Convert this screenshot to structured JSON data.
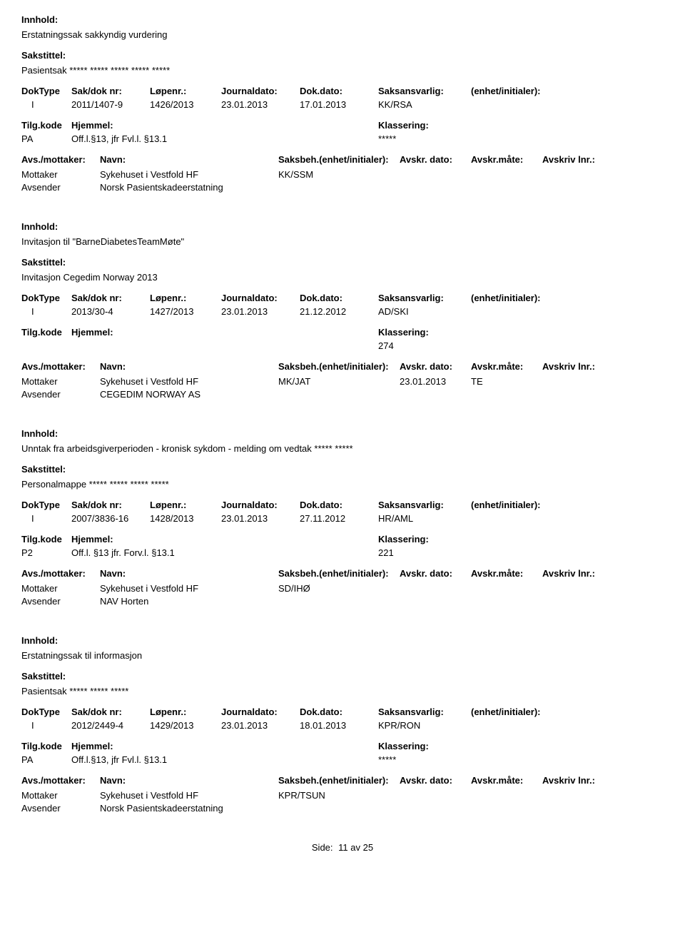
{
  "labels": {
    "innhold": "Innhold:",
    "sakstittel": "Sakstittel:",
    "doktype": "DokType",
    "sakdok": "Sak/dok nr:",
    "lopenr": "Løpenr.:",
    "journaldato": "Journaldato:",
    "dokdato": "Dok.dato:",
    "saksansvarlig": "Saksansvarlig:",
    "enhet_initialer": "(enhet/initialer):",
    "tilgkode": "Tilg.kode",
    "hjemmel": "Hjemmel:",
    "klassering": "Klassering:",
    "avs_mottaker": "Avs./mottaker:",
    "navn": "Navn:",
    "saksbeh": "Saksbeh.(enhet/initialer):",
    "avskr_dato": "Avskr. dato:",
    "avskr_mate": "Avskr.måte:",
    "avskriv_lnr": "Avskriv lnr.:",
    "mottaker": "Mottaker",
    "avsender": "Avsender",
    "side": "Side:",
    "av": "av"
  },
  "footer": {
    "page": "11",
    "total": "25"
  },
  "records": [
    {
      "innhold": "Erstatningssak sakkyndig vurdering",
      "sakstittel": "Pasientsak ***** ***** ***** ***** *****",
      "doktype": "I",
      "sakdok": "2011/1407-9",
      "lopenr": "1426/2013",
      "journaldato": "23.01.2013",
      "dokdato": "17.01.2013",
      "saksansvarlig": "KK/RSA",
      "tilgkode": "PA",
      "hjemmel": "Off.l.§13, jfr Fvl.l. §13.1",
      "klassering": "*****",
      "parties": [
        {
          "role": "Mottaker",
          "navn": "Sykehuset i Vestfold HF",
          "saksbeh": "KK/SSM",
          "avskr_dato": "",
          "avskr_mate": "",
          "avskr_lnr": ""
        },
        {
          "role": "Avsender",
          "navn": "Norsk Pasientskadeerstatning",
          "saksbeh": "",
          "avskr_dato": "",
          "avskr_mate": "",
          "avskr_lnr": ""
        }
      ]
    },
    {
      "innhold": "Invitasjon til \"BarneDiabetesTeamMøte\"",
      "sakstittel": "Invitasjon Cegedim Norway 2013",
      "doktype": "I",
      "sakdok": "2013/30-4",
      "lopenr": "1427/2013",
      "journaldato": "23.01.2013",
      "dokdato": "21.12.2012",
      "saksansvarlig": "AD/SKI",
      "tilgkode": "",
      "hjemmel": "",
      "klassering": "274",
      "parties": [
        {
          "role": "Mottaker",
          "navn": "Sykehuset i Vestfold HF",
          "saksbeh": "MK/JAT",
          "avskr_dato": "23.01.2013",
          "avskr_mate": "TE",
          "avskr_lnr": ""
        },
        {
          "role": "Avsender",
          "navn": "CEGEDIM NORWAY AS",
          "saksbeh": "",
          "avskr_dato": "",
          "avskr_mate": "",
          "avskr_lnr": ""
        }
      ]
    },
    {
      "innhold": "Unntak fra arbeidsgiverperioden - kronisk sykdom - melding om vedtak ***** *****",
      "sakstittel": "Personalmappe ***** ***** ***** *****",
      "doktype": "I",
      "sakdok": "2007/3836-16",
      "lopenr": "1428/2013",
      "journaldato": "23.01.2013",
      "dokdato": "27.11.2012",
      "saksansvarlig": "HR/AML",
      "tilgkode": "P2",
      "hjemmel": "Off.l. §13  jfr. Forv.l. §13.1",
      "klassering": "221",
      "parties": [
        {
          "role": "Mottaker",
          "navn": "Sykehuset i Vestfold HF",
          "saksbeh": "SD/IHØ",
          "avskr_dato": "",
          "avskr_mate": "",
          "avskr_lnr": ""
        },
        {
          "role": "Avsender",
          "navn": "NAV Horten",
          "saksbeh": "",
          "avskr_dato": "",
          "avskr_mate": "",
          "avskr_lnr": ""
        }
      ]
    },
    {
      "innhold": "Erstatningssak til informasjon",
      "sakstittel": "Pasientsak ***** ***** *****",
      "doktype": "I",
      "sakdok": "2012/2449-4",
      "lopenr": "1429/2013",
      "journaldato": "23.01.2013",
      "dokdato": "18.01.2013",
      "saksansvarlig": "KPR/RON",
      "tilgkode": "PA",
      "hjemmel": "Off.l.§13, jfr Fvl.l. §13.1",
      "klassering": "*****",
      "parties": [
        {
          "role": "Mottaker",
          "navn": "Sykehuset i Vestfold HF",
          "saksbeh": "KPR/TSUN",
          "avskr_dato": "",
          "avskr_mate": "",
          "avskr_lnr": ""
        },
        {
          "role": "Avsender",
          "navn": "Norsk Pasientskadeerstatning",
          "saksbeh": "",
          "avskr_dato": "",
          "avskr_mate": "",
          "avskr_lnr": ""
        }
      ]
    }
  ]
}
